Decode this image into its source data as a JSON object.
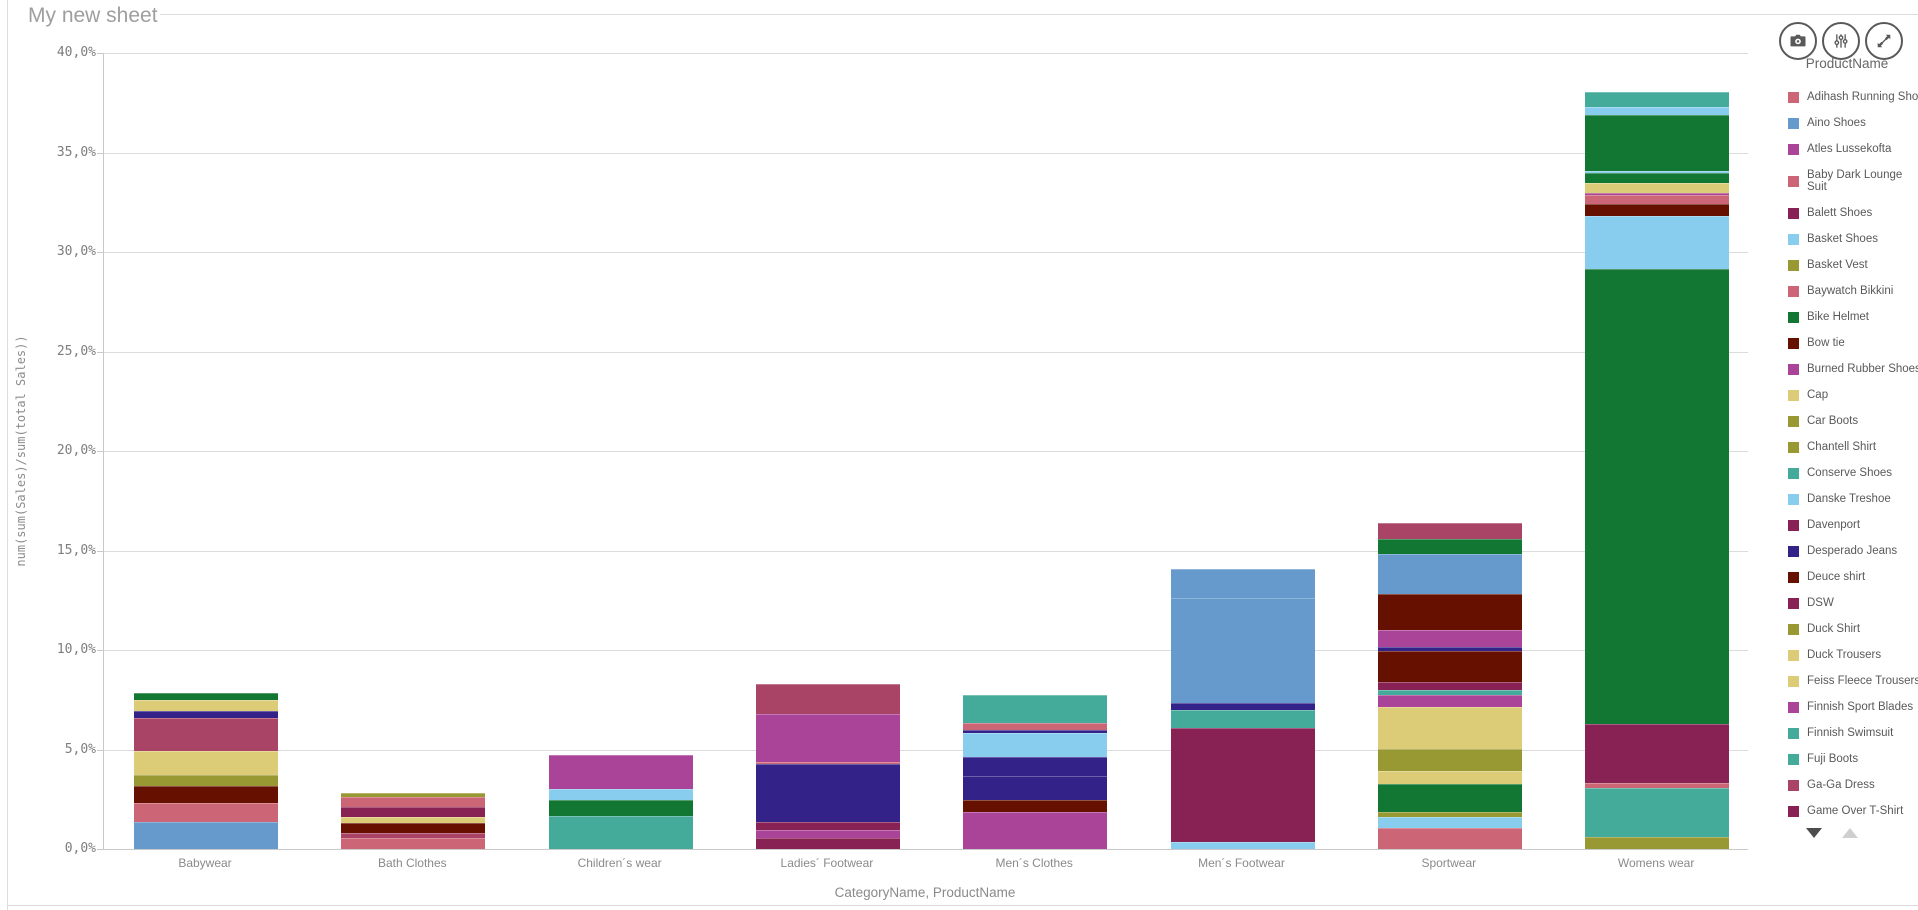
{
  "title": "My new sheet",
  "theme": {
    "grid_color": "#dcdcdc",
    "axis_color": "#c9c9c9",
    "muted_text": "#8a8a8a",
    "title_text": "#9e9e9e",
    "icon_color": "#595959"
  },
  "toolbar": {
    "buttons": [
      "snapshot",
      "exploration-menu",
      "fullscreen"
    ]
  },
  "legend": {
    "title": "ProductName",
    "items": [
      {
        "label": "Adihash Running Shoe",
        "color": "#cc6677"
      },
      {
        "label": "Aino Shoes",
        "color": "#6699cc"
      },
      {
        "label": "Atles Lussekofta",
        "color": "#aa4499"
      },
      {
        "label": "Baby Dark Lounge Suit",
        "color": "#cc6677",
        "wrap": true
      },
      {
        "label": "Balett Shoes",
        "color": "#882255"
      },
      {
        "label": "Basket Shoes",
        "color": "#88ccee"
      },
      {
        "label": "Basket Vest",
        "color": "#999933"
      },
      {
        "label": "Baywatch Bikkini",
        "color": "#cc6677"
      },
      {
        "label": "Bike Helmet",
        "color": "#117733"
      },
      {
        "label": "Bow tie",
        "color": "#661100"
      },
      {
        "label": "Burned Rubber Shoes",
        "color": "#aa4499"
      },
      {
        "label": "Cap",
        "color": "#ddcc77"
      },
      {
        "label": "Car Boots",
        "color": "#999933"
      },
      {
        "label": "Chantell Shirt",
        "color": "#999933"
      },
      {
        "label": "Conserve Shoes",
        "color": "#44aa99"
      },
      {
        "label": "Danske Treshoe",
        "color": "#88ccee"
      },
      {
        "label": "Davenport",
        "color": "#882255"
      },
      {
        "label": "Desperado Jeans",
        "color": "#332288"
      },
      {
        "label": "Deuce shirt",
        "color": "#661100"
      },
      {
        "label": "DSW",
        "color": "#882255"
      },
      {
        "label": "Duck Shirt",
        "color": "#999933"
      },
      {
        "label": "Duck Trousers",
        "color": "#ddcc77"
      },
      {
        "label": "Feiss Fleece Trousers",
        "color": "#ddcc77"
      },
      {
        "label": "Finnish Sport Blades",
        "color": "#aa4499"
      },
      {
        "label": "Finnish Swimsuit",
        "color": "#44aa99"
      },
      {
        "label": "Fuji Boots",
        "color": "#44aa99"
      },
      {
        "label": "Ga-Ga Dress",
        "color": "#aa4466"
      },
      {
        "label": "Game Over T-Shirt",
        "color": "#882255"
      }
    ],
    "scroll": {
      "down_enabled": true,
      "up_enabled": false
    }
  },
  "chart_data": {
    "type": "bar",
    "stacked": true,
    "xlabel": "CategoryName, ProductName",
    "ylabel": "num(sum(Sales)/sum(total Sales))",
    "ylim": [
      0,
      40
    ],
    "grid": true,
    "legend_position": "right",
    "ytick_labels": [
      "0,0%",
      "5,0%",
      "10,0%",
      "15,0%",
      "20,0%",
      "25,0%",
      "30,0%",
      "35,0%",
      "40,0%"
    ],
    "categories": [
      "Babywear",
      "Bath Clothes",
      "Children´s wear",
      "Ladies´ Footwear",
      "Men´s Clothes",
      "Men´s Footwear",
      "Sportwear",
      "Womens wear"
    ],
    "segment_order": "bottom-to-top, values are percent of total sales",
    "bars": [
      {
        "category": "Babywear",
        "total": 7.8,
        "segments": [
          {
            "color": "#6699cc",
            "value": 1.36
          },
          {
            "color": "#cc6677",
            "value": 0.95
          },
          {
            "color": "#661100",
            "value": 0.85
          },
          {
            "color": "#999933",
            "value": 0.55
          },
          {
            "color": "#ddcc77",
            "value": 1.21
          },
          {
            "color": "#aa4466",
            "value": 1.66
          },
          {
            "color": "#332288",
            "value": 0.35
          },
          {
            "color": "#ddcc77",
            "value": 0.55
          },
          {
            "color": "#117733",
            "value": 0.35
          }
        ]
      },
      {
        "category": "Bath Clothes",
        "total": 2.8,
        "segments": [
          {
            "color": "#cc6677",
            "value": 0.55
          },
          {
            "color": "#aa4466",
            "value": 0.25
          },
          {
            "color": "#661100",
            "value": 0.5
          },
          {
            "color": "#ddcc77",
            "value": 0.3
          },
          {
            "color": "#882255",
            "value": 0.5
          },
          {
            "color": "#cc6677",
            "value": 0.5
          },
          {
            "color": "#999933",
            "value": 0.2
          }
        ]
      },
      {
        "category": "Children´s wear",
        "total": 4.7,
        "segments": [
          {
            "color": "#44aa99",
            "value": 1.66
          },
          {
            "color": "#117733",
            "value": 0.8
          },
          {
            "color": "#88ccee",
            "value": 0.55
          },
          {
            "color": "#aa4499",
            "value": 1.71
          }
        ]
      },
      {
        "category": "Ladies´ Footwear",
        "total": 8.3,
        "segments": [
          {
            "color": "#882255",
            "value": 0.55
          },
          {
            "color": "#aa4499",
            "value": 0.4
          },
          {
            "color": "#882255",
            "value": 0.4
          },
          {
            "color": "#332288",
            "value": 2.91
          },
          {
            "color": "#cc6677",
            "value": 0.1
          },
          {
            "color": "#aa4499",
            "value": 2.41
          },
          {
            "color": "#aa4466",
            "value": 1.51
          }
        ]
      },
      {
        "category": "Men´s Clothes",
        "total": 7.7,
        "segments": [
          {
            "color": "#aa4499",
            "value": 1.86
          },
          {
            "color": "#661100",
            "value": 0.6
          },
          {
            "color": "#332288",
            "value": 1.21
          },
          {
            "color": "#332288",
            "value": 0.95
          },
          {
            "color": "#88ccee",
            "value": 1.21
          },
          {
            "color": "#332288",
            "value": 0.15
          },
          {
            "color": "#cc6677",
            "value": 0.35
          },
          {
            "color": "#44aa99",
            "value": 1.41
          }
        ]
      },
      {
        "category": "Men´s Footwear",
        "total": 14.1,
        "segments": [
          {
            "color": "#88ccee",
            "value": 0.35
          },
          {
            "color": "#882255",
            "value": 5.73
          },
          {
            "color": "#44aa99",
            "value": 0.9
          },
          {
            "color": "#332288",
            "value": 0.35
          },
          {
            "color": "#6699cc",
            "value": 5.28
          },
          {
            "color": "#6699cc",
            "value": 1.46
          }
        ]
      },
      {
        "category": "Sportwear",
        "total": 16.4,
        "segments": [
          {
            "color": "#cc6677",
            "value": 1.06
          },
          {
            "color": "#88ccee",
            "value": 0.55
          },
          {
            "color": "#999933",
            "value": 0.25
          },
          {
            "color": "#117733",
            "value": 1.41
          },
          {
            "color": "#ddcc77",
            "value": 0.65
          },
          {
            "color": "#999933",
            "value": 1.11
          },
          {
            "color": "#ddcc77",
            "value": 2.11
          },
          {
            "color": "#aa4499",
            "value": 0.6
          },
          {
            "color": "#44aa99",
            "value": 0.25
          },
          {
            "color": "#882255",
            "value": 0.4
          },
          {
            "color": "#661100",
            "value": 1.56
          },
          {
            "color": "#332288",
            "value": 0.2
          },
          {
            "color": "#aa4499",
            "value": 0.85
          },
          {
            "color": "#661100",
            "value": 1.81
          },
          {
            "color": "#6699cc",
            "value": 2.01
          },
          {
            "color": "#117733",
            "value": 0.75
          },
          {
            "color": "#aa4466",
            "value": 0.8
          }
        ]
      },
      {
        "category": "Womens wear",
        "total": 38.1,
        "segments": [
          {
            "color": "#999933",
            "value": 0.6
          },
          {
            "color": "#44aa99",
            "value": 2.46
          },
          {
            "color": "#cc6677",
            "value": 0.25
          },
          {
            "color": "#882255",
            "value": 2.96
          },
          {
            "color": "#117733",
            "value": 22.86
          },
          {
            "color": "#88ccee",
            "value": 2.66
          },
          {
            "color": "#661100",
            "value": 0.65
          },
          {
            "color": "#cc6677",
            "value": 0.45
          },
          {
            "color": "#aa4499",
            "value": 0.1
          },
          {
            "color": "#ddcc77",
            "value": 0.5
          },
          {
            "color": "#117733",
            "value": 0.5
          },
          {
            "color": "#88ccee",
            "value": 0.1
          },
          {
            "color": "#117733",
            "value": 2.81
          },
          {
            "color": "#88ccee",
            "value": 0.4
          },
          {
            "color": "#44aa99",
            "value": 0.75
          }
        ]
      }
    ]
  }
}
